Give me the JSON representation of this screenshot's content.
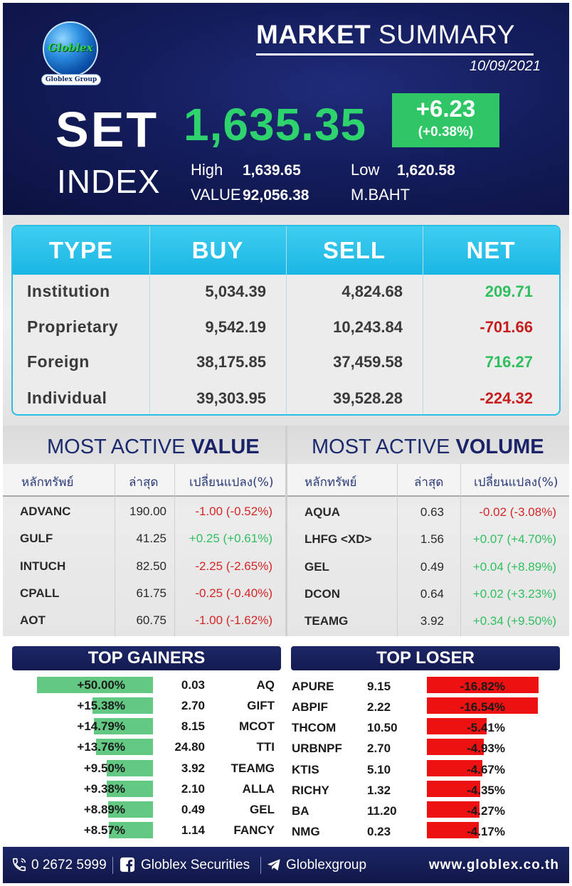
{
  "header": {
    "logo_text": "Globlex",
    "logo_sub": "Globlex Group",
    "title_bold": "MARKET",
    "title_rest": "SUMMARY",
    "date": "10/09/2021",
    "set_label": "SET",
    "index_label": "INDEX",
    "set_value": "1,635.35",
    "change": "+6.23",
    "change_pct": "(+0.38%)",
    "high_label": "High",
    "high_value": "1,639.65",
    "low_label": "Low",
    "low_value": "1,620.58",
    "value_label": "VALUE",
    "value_amount": "92,056.38",
    "value_unit": "M.BAHT"
  },
  "type_table": {
    "headers": [
      "TYPE",
      "BUY",
      "SELL",
      "NET"
    ],
    "rows": [
      {
        "type": "Institution",
        "buy": "5,034.39",
        "sell": "4,824.68",
        "net": "209.71",
        "sign": "pos"
      },
      {
        "type": "Proprietary",
        "buy": "9,542.19",
        "sell": "10,243.84",
        "net": "-701.66",
        "sign": "neg"
      },
      {
        "type": "Foreign",
        "buy": "38,175.85",
        "sell": "37,459.58",
        "net": "716.27",
        "sign": "pos"
      },
      {
        "type": "Individual",
        "buy": "39,303.95",
        "sell": "39,528.28",
        "net": "-224.32",
        "sign": "neg"
      }
    ]
  },
  "most_active_value": {
    "title_prefix": "MOST ACTIVE",
    "title_bold": "VALUE",
    "headers": [
      "หลักทรัพย์",
      "ล่าสุด",
      "เปลี่ยนแปลง(%)"
    ],
    "rows": [
      {
        "symbol": "ADVANC",
        "last": "190.00",
        "change": "-1.00 (-0.52%)",
        "sign": "neg"
      },
      {
        "symbol": "GULF",
        "last": "41.25",
        "change": "+0.25 (+0.61%)",
        "sign": "pos"
      },
      {
        "symbol": "INTUCH",
        "last": "82.50",
        "change": "-2.25 (-2.65%)",
        "sign": "neg"
      },
      {
        "symbol": "CPALL",
        "last": "61.75",
        "change": "-0.25 (-0.40%)",
        "sign": "neg"
      },
      {
        "symbol": "AOT",
        "last": "60.75",
        "change": "-1.00 (-1.62%)",
        "sign": "neg"
      }
    ]
  },
  "most_active_volume": {
    "title_prefix": "MOST ACTIVE",
    "title_bold": "VOLUME",
    "headers": [
      "หลักทรัพย์",
      "ล่าสุด",
      "เปลี่ยนแปลง(%)"
    ],
    "rows": [
      {
        "symbol": "AQUA",
        "last": "0.63",
        "change": "-0.02 (-3.08%)",
        "sign": "neg"
      },
      {
        "symbol": "LHFG <XD>",
        "last": "1.56",
        "change": "+0.07 (+4.70%)",
        "sign": "pos"
      },
      {
        "symbol": "GEL",
        "last": "0.49",
        "change": "+0.04 (+8.89%)",
        "sign": "pos"
      },
      {
        "symbol": "DCON",
        "last": "0.64",
        "change": "+0.02 (+3.23%)",
        "sign": "pos"
      },
      {
        "symbol": "TEAMG",
        "last": "3.92",
        "change": "+0.34 (+9.50%)",
        "sign": "pos"
      }
    ]
  },
  "top_gainers": {
    "title": "TOP GAINERS",
    "bar_color": "#63c882",
    "rows": [
      {
        "pct": "+50.00%",
        "pct_value": 50.0,
        "price": "0.03",
        "symbol": "AQ"
      },
      {
        "pct": "+15.38%",
        "pct_value": 15.38,
        "price": "2.70",
        "symbol": "GIFT"
      },
      {
        "pct": "+14.79%",
        "pct_value": 14.79,
        "price": "8.15",
        "symbol": "MCOT"
      },
      {
        "pct": "+13.76%",
        "pct_value": 13.76,
        "price": "24.80",
        "symbol": "TTI"
      },
      {
        "pct": "+9.50%",
        "pct_value": 9.5,
        "price": "3.92",
        "symbol": "TEAMG"
      },
      {
        "pct": "+9.38%",
        "pct_value": 9.38,
        "price": "2.10",
        "symbol": "ALLA"
      },
      {
        "pct": "+8.89%",
        "pct_value": 8.89,
        "price": "0.49",
        "symbol": "GEL"
      },
      {
        "pct": "+8.57%",
        "pct_value": 8.57,
        "price": "1.14",
        "symbol": "FANCY"
      }
    ]
  },
  "top_loser": {
    "title": "TOP LOSER",
    "bar_color": "#ee1111",
    "rows": [
      {
        "symbol": "APURE",
        "price": "9.15",
        "pct": "-16.82%",
        "pct_value": 16.82
      },
      {
        "symbol": "ABPIF",
        "price": "2.22",
        "pct": "-16.54%",
        "pct_value": 16.54
      },
      {
        "symbol": "THCOM",
        "price": "10.50",
        "pct": "-5.41%",
        "pct_value": 5.41
      },
      {
        "symbol": "URBNPF",
        "price": "2.70",
        "pct": "-4.93%",
        "pct_value": 4.93
      },
      {
        "symbol": "KTIS",
        "price": "5.10",
        "pct": "-4.67%",
        "pct_value": 4.67
      },
      {
        "symbol": "RICHY",
        "price": "1.32",
        "pct": "-4.35%",
        "pct_value": 4.35
      },
      {
        "symbol": "BA",
        "price": "11.20",
        "pct": "-4.27%",
        "pct_value": 4.27
      },
      {
        "symbol": "NMG",
        "price": "0.23",
        "pct": "-4.17%",
        "pct_value": 4.17
      }
    ]
  },
  "footer": {
    "phone": "0 2672 5999",
    "facebook": "Globlex Securities",
    "telegram": "Globlexgroup",
    "website": "www.globlex.co.th",
    "phone_icon": "phone-icon",
    "facebook_icon": "facebook-icon",
    "telegram_icon": "telegram-icon"
  },
  "colors": {
    "header_bg": "#141d5c",
    "set_green": "#2fd36e",
    "table_header": "#1ab6e4",
    "positive": "#2fbf5f",
    "negative": "#c81d1d"
  }
}
